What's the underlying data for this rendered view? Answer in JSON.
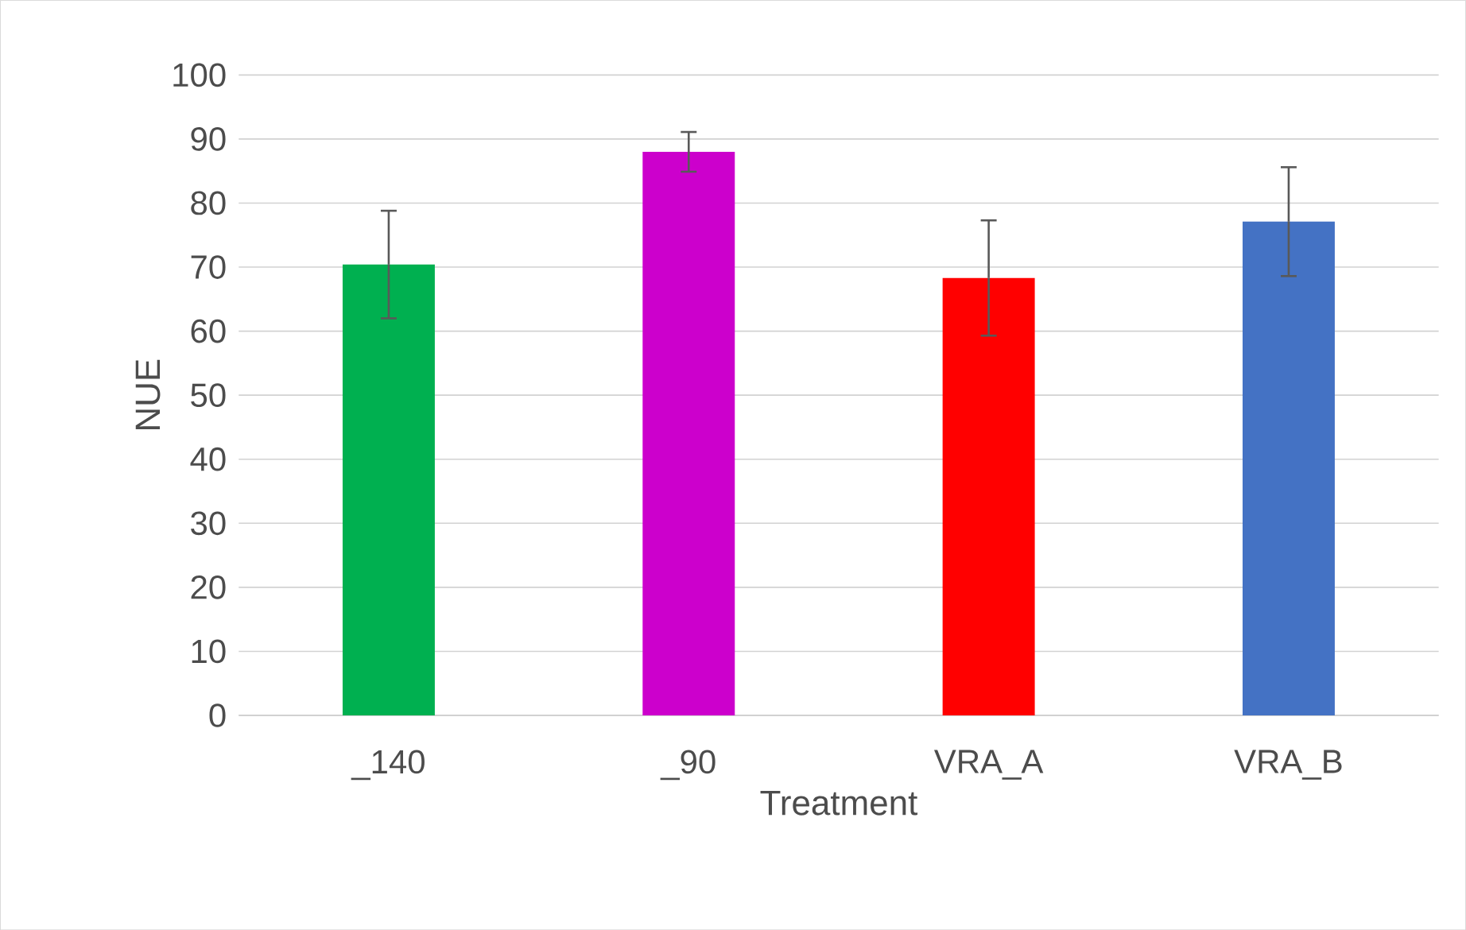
{
  "chart_data": {
    "type": "bar",
    "xlabel": "Treatment",
    "ylabel": "NUE",
    "categories": [
      "_140",
      "_90",
      "VRA_A",
      "VRA_B"
    ],
    "values": [
      70.4,
      88.0,
      68.3,
      77.1
    ],
    "colors": [
      "#00b050",
      "#cc00cc",
      "#ff0000",
      "#4472c4"
    ],
    "errors": [
      8.4,
      3.1,
      9.0,
      8.5
    ],
    "ylim": [
      0,
      100
    ],
    "yticks": [
      0,
      10,
      20,
      30,
      40,
      50,
      60,
      70,
      80,
      90,
      100
    ],
    "grid": "y"
  }
}
